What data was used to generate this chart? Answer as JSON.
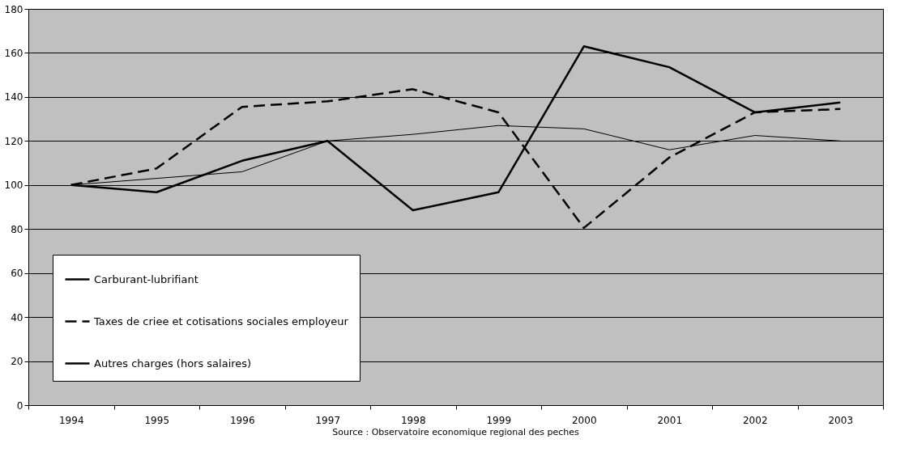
{
  "chart_data": {
    "type": "line",
    "categories": [
      "1994",
      "1995",
      "1996",
      "1997",
      "1998",
      "1999",
      "2000",
      "2001",
      "2002",
      "2003"
    ],
    "series": [
      {
        "name": "Carburant-lubrifiant",
        "color": "#000000",
        "line_style": "solid",
        "values": [
          100,
          96.7,
          111,
          120,
          88.5,
          96.7,
          163,
          153.5,
          133,
          137.5
        ]
      },
      {
        "name": "Taxes de criee et cotisations sociales employeur",
        "color": "#000000",
        "line_style": "dashed",
        "values": [
          100,
          107.5,
          135.5,
          138,
          143.5,
          133,
          80.5,
          112.5,
          133,
          134.5
        ]
      },
      {
        "name": "Autres charges (hors salaires)",
        "color": "#000000",
        "line_style": "solid",
        "values": [
          100,
          103,
          106,
          120,
          123,
          127,
          125.5,
          116,
          122.5,
          120
        ]
      }
    ],
    "ylim": [
      0,
      180
    ],
    "yticks": [
      0,
      20,
      40,
      60,
      80,
      100,
      120,
      140,
      160,
      180
    ],
    "grid": "y",
    "legend": "bottom left",
    "marker": "none",
    "annotations": [
      "Source : Observatoire economique regional des peches"
    ]
  }
}
